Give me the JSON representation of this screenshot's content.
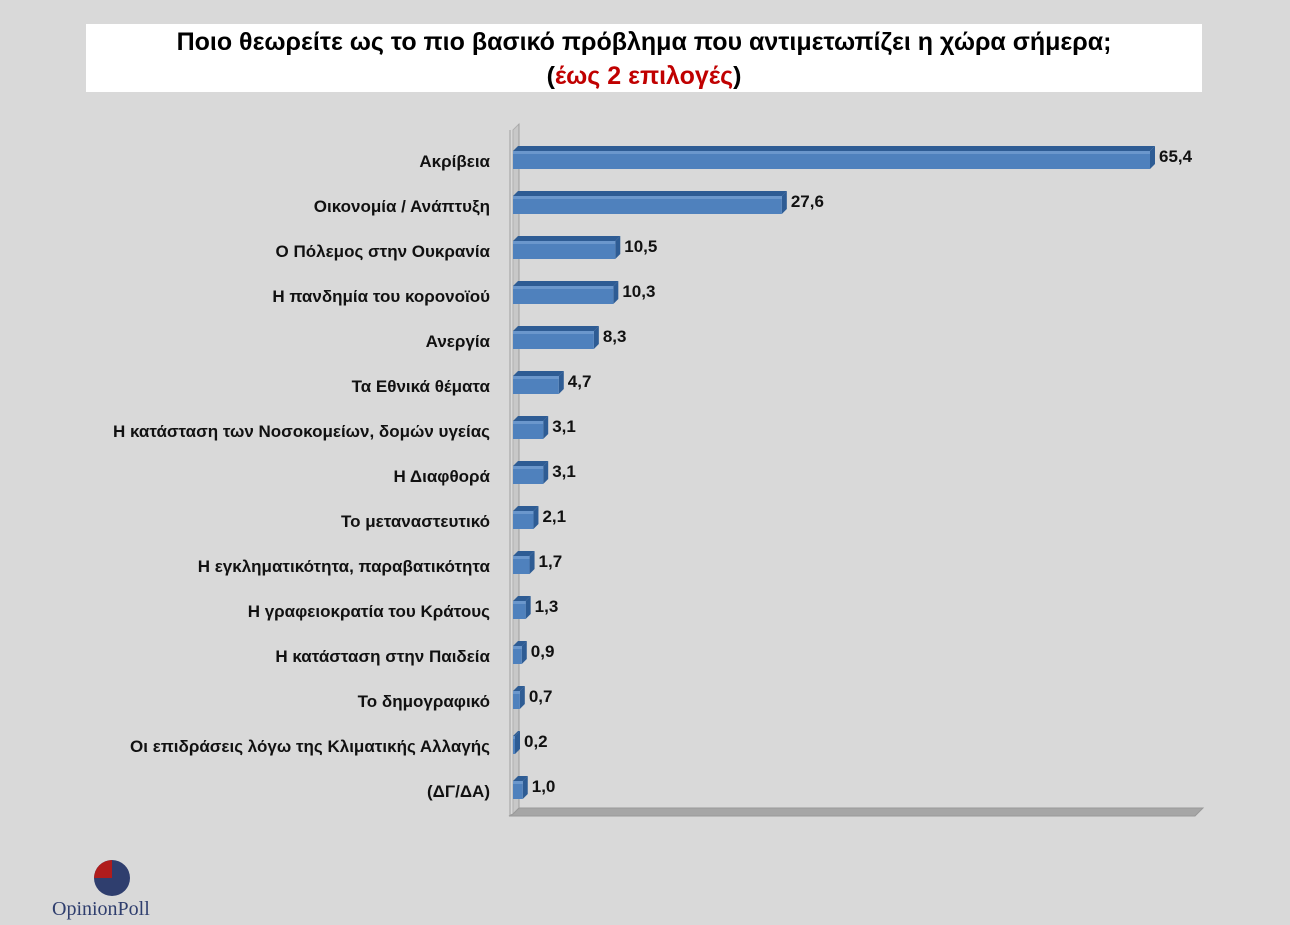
{
  "title": {
    "line1": "Ποιο θεωρείτε ως το πιο βασικό πρόβλημα που αντιμετωπίζει η χώρα σήμερα;",
    "line2_open": "(",
    "line2_red": "έως 2 επιλογές",
    "line2_close": ")"
  },
  "logo": {
    "text": "OpinionPoll"
  },
  "colors": {
    "bar": "#4f81bd",
    "bar_top": "#7fa6d6",
    "bar_side": "#2e5c94",
    "title_accent": "#c00000"
  },
  "chart_data": {
    "type": "bar",
    "orientation": "horizontal",
    "categories": [
      "Ακρίβεια",
      "Οικονομία / Ανάπτυξη",
      "Ο Πόλεμος στην Ουκρανία",
      "Η πανδημία του κορονοϊού",
      "Ανεργία",
      "Τα Εθνικά θέματα",
      "Η κατάσταση των Νοσοκομείων, δομών υγείας",
      "Η Διαφθορά",
      "Το μεταναστευτικό",
      "Η εγκληματικότητα, παραβατικότητα",
      "Η γραφειοκρατία του Κράτους",
      "Η κατάσταση στην Παιδεία",
      "Το δημογραφικό",
      "Οι επιδράσεις λόγω της Κλιματικής Αλλαγής",
      "(ΔΓ/ΔΑ)"
    ],
    "values": [
      65.4,
      27.6,
      10.5,
      10.3,
      8.3,
      4.7,
      3.1,
      3.1,
      2.1,
      1.7,
      1.3,
      0.9,
      0.7,
      0.2,
      1.0
    ],
    "value_labels": [
      "65,4",
      "27,6",
      "10,5",
      "10,3",
      "8,3",
      "4,7",
      "3,1",
      "3,1",
      "2,1",
      "1,7",
      "1,3",
      "0,9",
      "0,7",
      "0,2",
      "1,0"
    ],
    "xlim": [
      0,
      70
    ],
    "grid": false,
    "legend": "none"
  }
}
